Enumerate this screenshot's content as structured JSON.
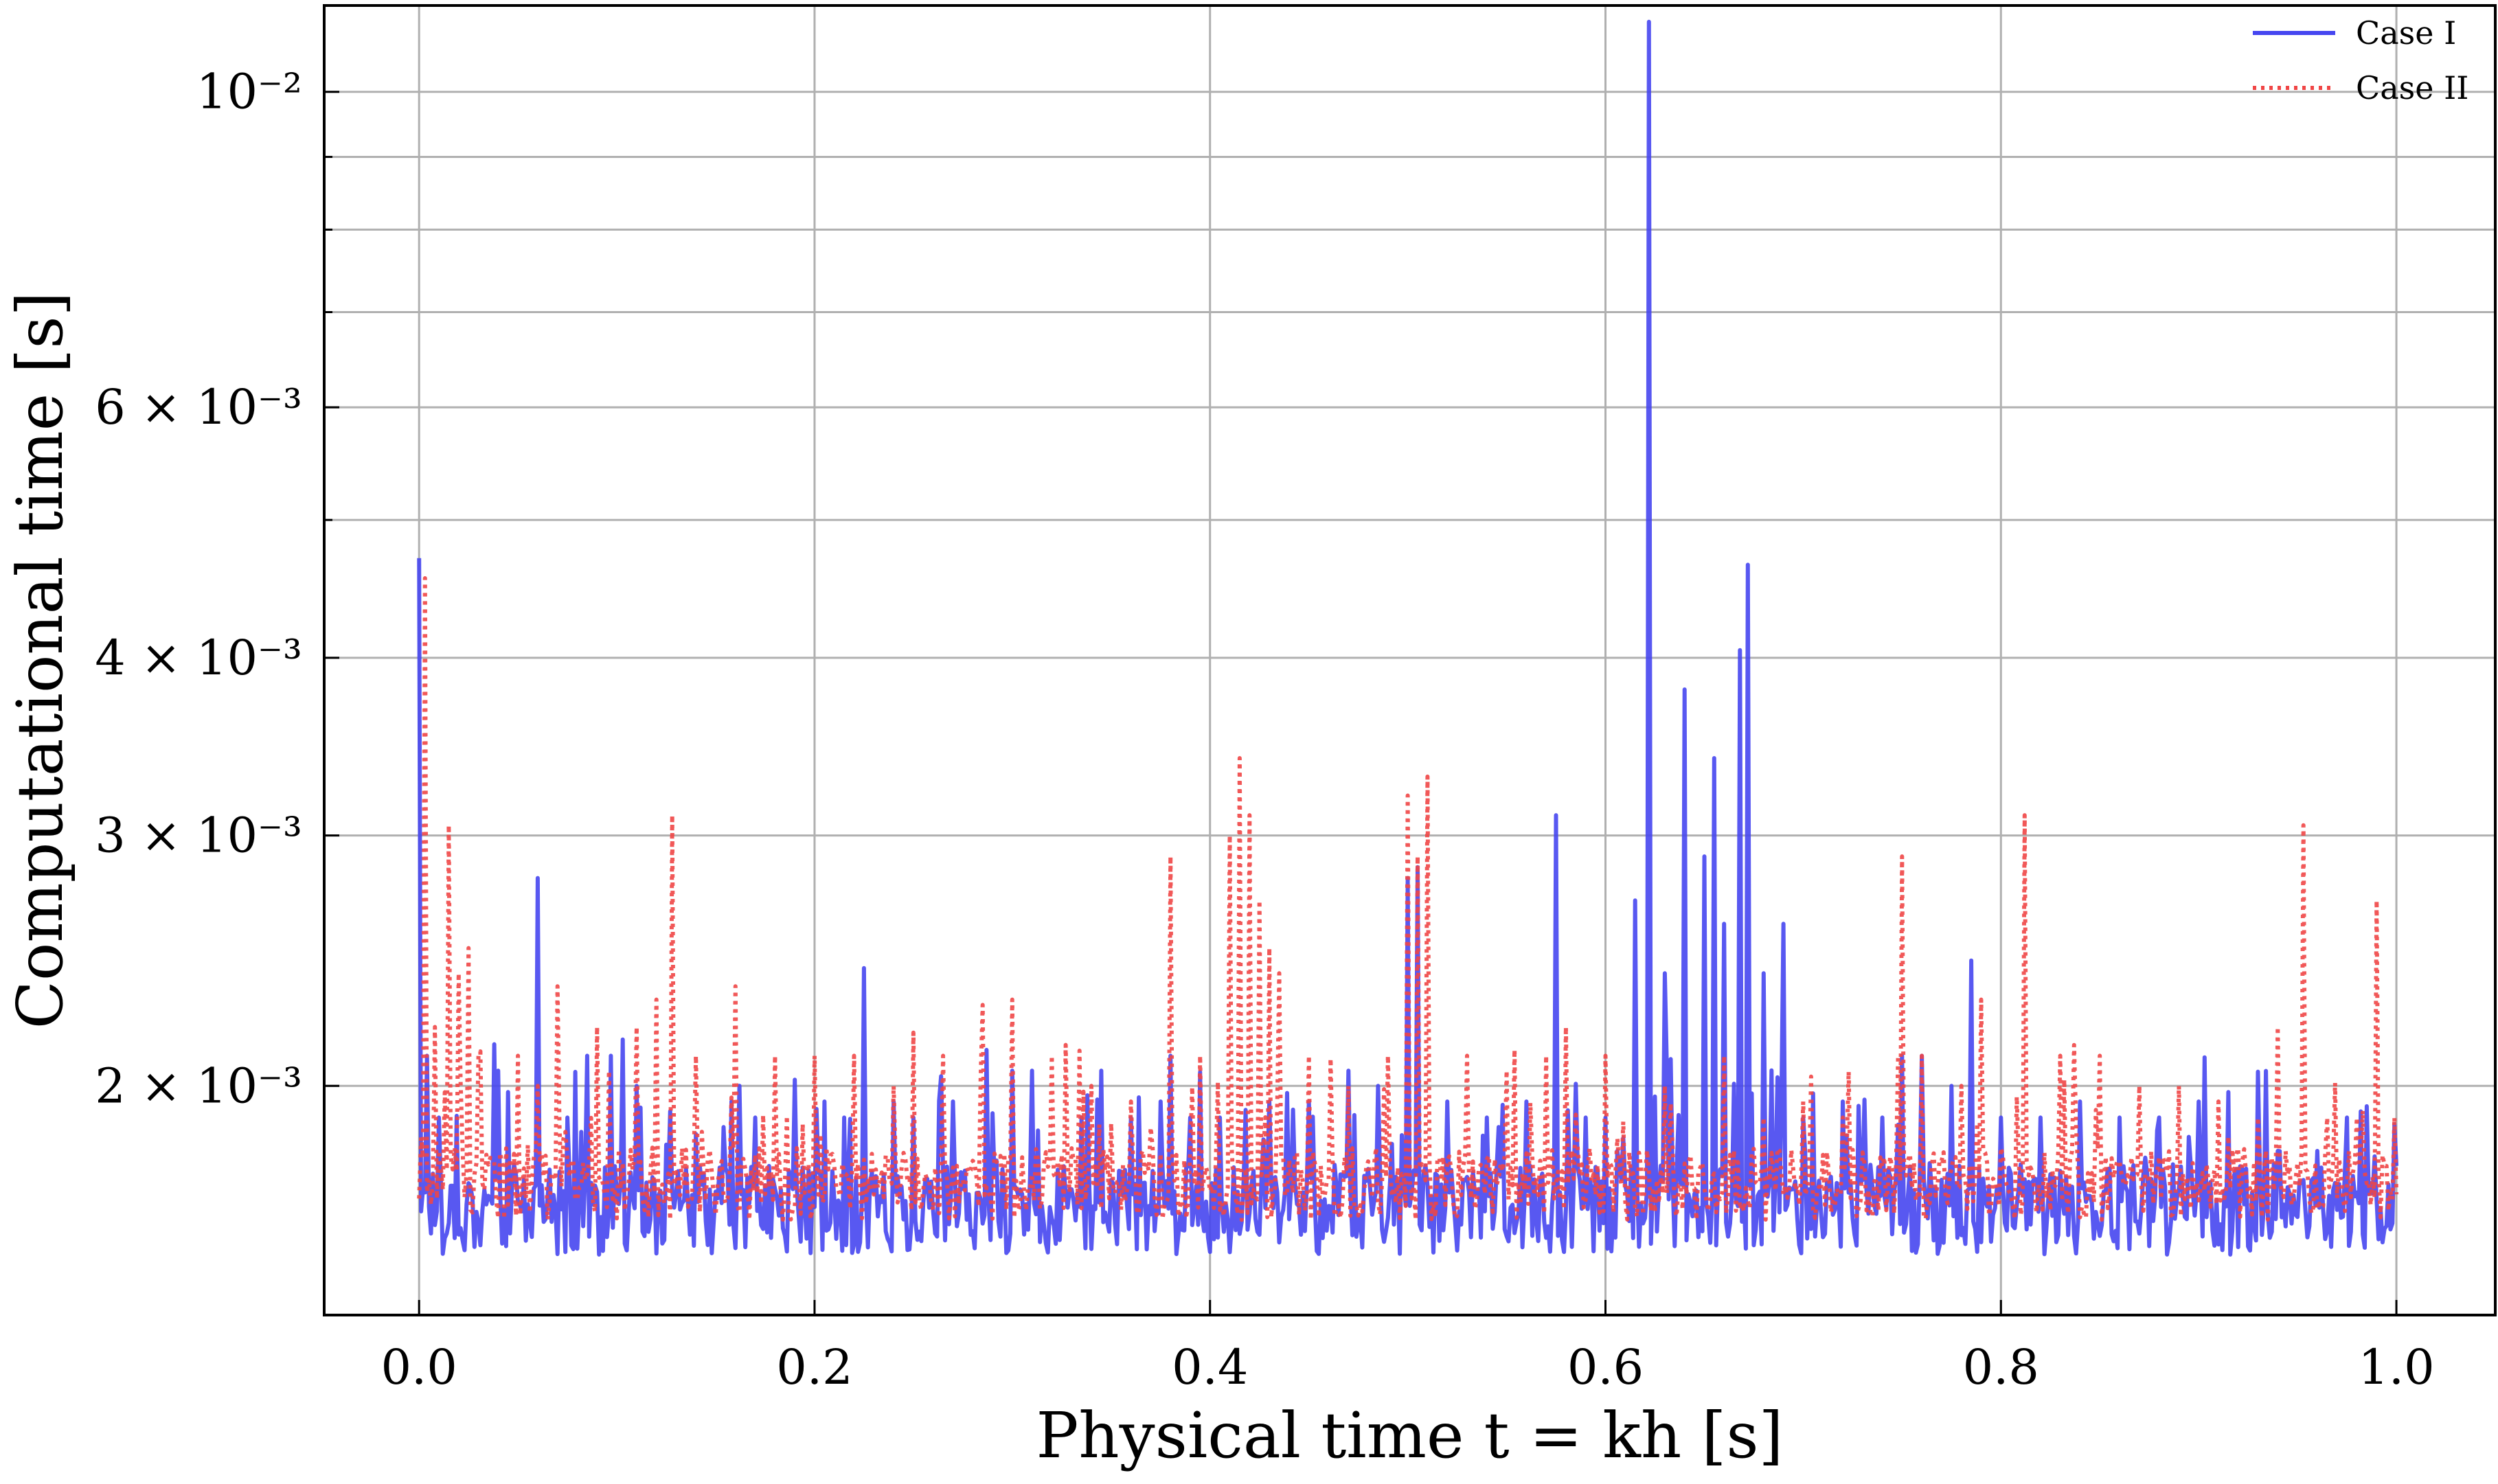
{
  "chart_data": {
    "type": "line",
    "title": "",
    "xlabel": "Physical time t = kh [s]",
    "ylabel": "Computational time [s]",
    "xlim": [
      -0.048,
      1.05
    ],
    "ylim": [
      0.00138,
      0.0115
    ],
    "yscale": "log",
    "grid": true,
    "legend_position": "top-right",
    "x_ticks": [
      {
        "value": 0.0,
        "label": "0.0"
      },
      {
        "value": 0.2,
        "label": "0.2"
      },
      {
        "value": 0.4,
        "label": "0.4"
      },
      {
        "value": 0.6,
        "label": "0.6"
      },
      {
        "value": 0.8,
        "label": "0.8"
      },
      {
        "value": 1.0,
        "label": "1.0"
      }
    ],
    "y_ticks_major": [
      {
        "value": 0.002,
        "label": "2 × 10⁻³"
      },
      {
        "value": 0.003,
        "label": "3 × 10⁻³"
      },
      {
        "value": 0.004,
        "label": "4 × 10⁻³"
      },
      {
        "value": 0.006,
        "label": "6 × 10⁻³"
      },
      {
        "value": 0.01,
        "label": "10⁻²"
      }
    ],
    "y_ticks_minor": [
      0.005,
      0.007,
      0.008,
      0.009
    ],
    "series": [
      {
        "name": "Case I",
        "color": "#4646f0",
        "style": "solid",
        "baseline": 0.00163,
        "noise": 0.00012,
        "spikes": [
          [
            0.0,
            0.0047
          ],
          [
            0.004,
            0.0021
          ],
          [
            0.01,
            0.0019
          ],
          [
            0.04,
            0.00205
          ],
          [
            0.045,
            0.00198
          ],
          [
            0.06,
            0.0028
          ],
          [
            0.075,
            0.0019
          ],
          [
            0.085,
            0.0021
          ],
          [
            0.097,
            0.0021
          ],
          [
            0.11,
            0.002
          ],
          [
            0.127,
            0.00192
          ],
          [
            0.14,
            0.00185
          ],
          [
            0.158,
            0.00195
          ],
          [
            0.17,
            0.0019
          ],
          [
            0.19,
            0.00202
          ],
          [
            0.205,
            0.00195
          ],
          [
            0.215,
            0.0019
          ],
          [
            0.225,
            0.00242
          ],
          [
            0.24,
            0.00195
          ],
          [
            0.25,
            0.0019
          ],
          [
            0.27,
            0.00195
          ],
          [
            0.287,
            0.00212
          ],
          [
            0.3,
            0.00205
          ],
          [
            0.31,
            0.00205
          ],
          [
            0.335,
            0.0019
          ],
          [
            0.345,
            0.00205
          ],
          [
            0.36,
            0.0019
          ],
          [
            0.375,
            0.00195
          ],
          [
            0.38,
            0.0021
          ],
          [
            0.39,
            0.0019
          ],
          [
            0.405,
            0.0019
          ],
          [
            0.43,
            0.00195
          ],
          [
            0.45,
            0.00195
          ],
          [
            0.47,
            0.00205
          ],
          [
            0.485,
            0.002
          ],
          [
            0.5,
            0.0028
          ],
          [
            0.505,
            0.00285
          ],
          [
            0.52,
            0.00195
          ],
          [
            0.54,
            0.0019
          ],
          [
            0.56,
            0.00195
          ],
          [
            0.575,
            0.0031
          ],
          [
            0.59,
            0.0019
          ],
          [
            0.6,
            0.0019
          ],
          [
            0.615,
            0.0027
          ],
          [
            0.622,
            0.0112
          ],
          [
            0.63,
            0.0024
          ],
          [
            0.64,
            0.0038
          ],
          [
            0.65,
            0.0029
          ],
          [
            0.655,
            0.0034
          ],
          [
            0.66,
            0.0026
          ],
          [
            0.668,
            0.00405
          ],
          [
            0.672,
            0.00465
          ],
          [
            0.68,
            0.0024
          ],
          [
            0.69,
            0.0026
          ],
          [
            0.7,
            0.0019
          ],
          [
            0.72,
            0.00195
          ],
          [
            0.74,
            0.0019
          ],
          [
            0.75,
            0.0021
          ],
          [
            0.76,
            0.0021
          ],
          [
            0.775,
            0.002
          ],
          [
            0.785,
            0.00245
          ],
          [
            0.8,
            0.0019
          ],
          [
            0.82,
            0.0019
          ],
          [
            0.84,
            0.00195
          ],
          [
            0.86,
            0.0019
          ],
          [
            0.88,
            0.0019
          ],
          [
            0.9,
            0.00195
          ],
          [
            0.915,
            0.00198
          ],
          [
            0.93,
            0.0019
          ],
          [
            0.94,
            0.0018
          ],
          [
            0.96,
            0.0018
          ],
          [
            0.975,
            0.0019
          ],
          [
            0.999,
            0.00188
          ]
        ]
      },
      {
        "name": "Case II",
        "color": "#f04646",
        "style": "dotted",
        "baseline": 0.0017,
        "noise": 0.0001,
        "spikes": [
          [
            0.003,
            0.00455
          ],
          [
            0.008,
            0.0022
          ],
          [
            0.015,
            0.00305
          ],
          [
            0.02,
            0.0024
          ],
          [
            0.025,
            0.0025
          ],
          [
            0.03,
            0.0021
          ],
          [
            0.05,
            0.0021
          ],
          [
            0.06,
            0.002
          ],
          [
            0.07,
            0.00235
          ],
          [
            0.09,
            0.0022
          ],
          [
            0.11,
            0.0022
          ],
          [
            0.12,
            0.0023
          ],
          [
            0.128,
            0.0031
          ],
          [
            0.14,
            0.0021
          ],
          [
            0.16,
            0.00235
          ],
          [
            0.18,
            0.0021
          ],
          [
            0.2,
            0.0021
          ],
          [
            0.22,
            0.0021
          ],
          [
            0.24,
            0.002
          ],
          [
            0.25,
            0.00218
          ],
          [
            0.265,
            0.0021
          ],
          [
            0.285,
            0.00228
          ],
          [
            0.3,
            0.0023
          ],
          [
            0.32,
            0.0021
          ],
          [
            0.34,
            0.002
          ],
          [
            0.36,
            0.00195
          ],
          [
            0.38,
            0.0029
          ],
          [
            0.395,
            0.0021
          ],
          [
            0.41,
            0.003
          ],
          [
            0.415,
            0.0034
          ],
          [
            0.42,
            0.0031
          ],
          [
            0.425,
            0.0027
          ],
          [
            0.43,
            0.0025
          ],
          [
            0.435,
            0.0024
          ],
          [
            0.45,
            0.0021
          ],
          [
            0.47,
            0.002
          ],
          [
            0.49,
            0.0021
          ],
          [
            0.5,
            0.0032
          ],
          [
            0.505,
            0.0029
          ],
          [
            0.51,
            0.0033
          ],
          [
            0.53,
            0.0021
          ],
          [
            0.55,
            0.00205
          ],
          [
            0.57,
            0.0021
          ],
          [
            0.58,
            0.0022
          ],
          [
            0.6,
            0.0021
          ],
          [
            0.63,
            0.002
          ],
          [
            0.66,
            0.0021
          ],
          [
            0.68,
            0.0019
          ],
          [
            0.7,
            0.00195
          ],
          [
            0.72,
            0.0019
          ],
          [
            0.75,
            0.0029
          ],
          [
            0.76,
            0.0021
          ],
          [
            0.78,
            0.002
          ],
          [
            0.79,
            0.0023
          ],
          [
            0.812,
            0.0031
          ],
          [
            0.83,
            0.0021
          ],
          [
            0.85,
            0.0021
          ],
          [
            0.87,
            0.002
          ],
          [
            0.89,
            0.002
          ],
          [
            0.91,
            0.00195
          ],
          [
            0.93,
            0.0019
          ],
          [
            0.94,
            0.0022
          ],
          [
            0.953,
            0.00305
          ],
          [
            0.965,
            0.0019
          ],
          [
            0.98,
            0.0019
          ],
          [
            0.99,
            0.0027
          ],
          [
            0.999,
            0.0019
          ]
        ]
      }
    ]
  }
}
